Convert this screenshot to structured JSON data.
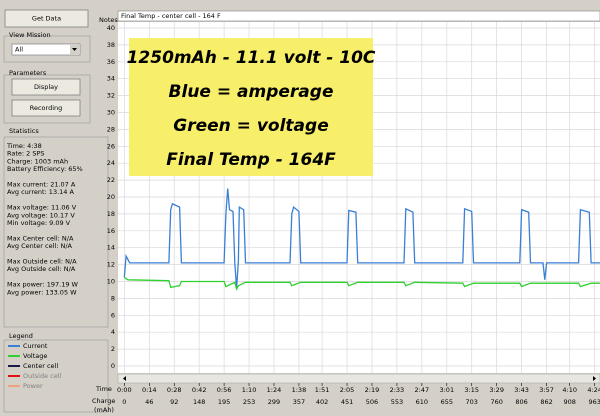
{
  "ui": {
    "get_data": "Get Data",
    "view_mission": {
      "label": "View Mission",
      "selected": "All"
    },
    "parameters": {
      "label": "Parameters",
      "buttons": [
        "Display",
        "Recording"
      ]
    },
    "statistics": {
      "label": "Statistics",
      "groups": [
        [
          "Time: 4:38",
          "Rate: 2 SPS",
          "Charge: 1003 mAh",
          "Battery Efficiency: 65%"
        ],
        [
          "Max current: 21.07 A",
          "Avg current: 13.14 A"
        ],
        [
          "Max voltage: 11.06 V",
          "Avg voltage: 10.17 V",
          "Min voltage: 9.09 V"
        ],
        [
          "Max Center cell: N/A",
          "Avg Center cell: N/A"
        ],
        [
          "Max Outside cell: N/A",
          "Avg Outside cell: N/A"
        ],
        [
          "Max power: 197.19 W",
          "Avg power: 133.05 W"
        ]
      ]
    },
    "legend_label": "Legend",
    "notes_label": "Notes",
    "notes": "Final Temp - center cell - 164 F"
  },
  "chart_data": {
    "type": "line",
    "annotation": [
      "1250mAh - 11.1 volt - 10C",
      "Blue = amperage",
      "Green = voltage",
      "Final Temp - 164F"
    ],
    "x_label": "Time",
    "charge_label": "Charge",
    "charge_unit": "(mAh)",
    "xlim": [
      -3,
      267
    ],
    "xticks": [
      {
        "value": 0,
        "label": "0:00"
      },
      {
        "value": 14,
        "label": "0:14"
      },
      {
        "value": 28,
        "label": "0:28"
      },
      {
        "value": 42,
        "label": "0:42"
      },
      {
        "value": 56,
        "label": "0:56"
      },
      {
        "value": 70,
        "label": "1:10"
      },
      {
        "value": 84,
        "label": "1:24"
      },
      {
        "value": 98,
        "label": "1:38"
      },
      {
        "value": 111,
        "label": "1:51"
      },
      {
        "value": 125,
        "label": "2:05"
      },
      {
        "value": 139,
        "label": "2:19"
      },
      {
        "value": 153,
        "label": "2:33"
      },
      {
        "value": 167,
        "label": "2:47"
      },
      {
        "value": 181,
        "label": "3:01"
      },
      {
        "value": 195,
        "label": "3:15"
      },
      {
        "value": 209,
        "label": "3:29"
      },
      {
        "value": 223,
        "label": "3:43"
      },
      {
        "value": 237,
        "label": "3:57"
      },
      {
        "value": 250,
        "label": "4:10"
      },
      {
        "value": 264,
        "label": "4:24"
      }
    ],
    "charge_ticks": [
      0,
      46,
      92,
      148,
      195,
      253,
      299,
      357,
      402,
      451,
      506,
      553,
      610,
      655,
      703,
      760,
      806,
      862,
      908,
      963
    ],
    "ylim": [
      0,
      40
    ],
    "yticks": [
      0,
      2,
      4,
      6,
      8,
      10,
      12,
      14,
      16,
      18,
      20,
      22,
      24,
      26,
      28,
      30,
      32,
      34,
      36,
      38,
      40
    ],
    "grid": true,
    "series": [
      {
        "name": "Current",
        "color": "#3a7fd5",
        "x": [
          0,
          1,
          3,
          25,
          26,
          27,
          31,
          32,
          56,
          57,
          58,
          59,
          61,
          62,
          63,
          64,
          64.5,
          67,
          68,
          93,
          94,
          95,
          98,
          99,
          125,
          126,
          130,
          131,
          157,
          158,
          162,
          163,
          190,
          191,
          195,
          196,
          222,
          223,
          227,
          228,
          235,
          236,
          237,
          255,
          256,
          261,
          262,
          267
        ],
        "values": [
          10.5,
          13,
          12.2,
          12.2,
          18.5,
          19.2,
          18.8,
          12.2,
          12.2,
          18,
          21,
          18.5,
          18.3,
          12.2,
          9.2,
          12.5,
          18.8,
          18.5,
          12.2,
          12.2,
          18,
          18.8,
          18.3,
          12.2,
          12.2,
          18.4,
          18.2,
          12.2,
          12.2,
          18.6,
          18.2,
          12.2,
          12.2,
          18.6,
          18.3,
          12.2,
          12.2,
          18.5,
          18.2,
          12.2,
          12.2,
          10.2,
          12.2,
          12.2,
          18.5,
          18.2,
          12.2,
          12.2
        ]
      },
      {
        "name": "Voltage",
        "color": "#2ed12e",
        "x": [
          0,
          2,
          25,
          26,
          31,
          32,
          56,
          57,
          62,
          63,
          64,
          68,
          93,
          94,
          99,
          125,
          126,
          131,
          157,
          158,
          163,
          190,
          191,
          196,
          222,
          223,
          228,
          255,
          256,
          262,
          267
        ],
        "values": [
          10.5,
          10.2,
          10.1,
          9.3,
          9.5,
          10,
          10,
          9.4,
          9.9,
          9.1,
          9.5,
          9.9,
          9.9,
          9.5,
          9.9,
          9.9,
          9.5,
          9.9,
          9.9,
          9.5,
          9.9,
          9.8,
          9.4,
          9.8,
          9.8,
          9.4,
          9.8,
          9.8,
          9.4,
          9.8,
          9.8
        ]
      },
      {
        "name": "Center cell",
        "color": "#1a1a4a",
        "x": [],
        "values": []
      },
      {
        "name": "Outside cell",
        "color": "#e01010",
        "x": [],
        "values": []
      },
      {
        "name": "Power",
        "color": "#f0a080",
        "x": [],
        "values": []
      }
    ]
  }
}
